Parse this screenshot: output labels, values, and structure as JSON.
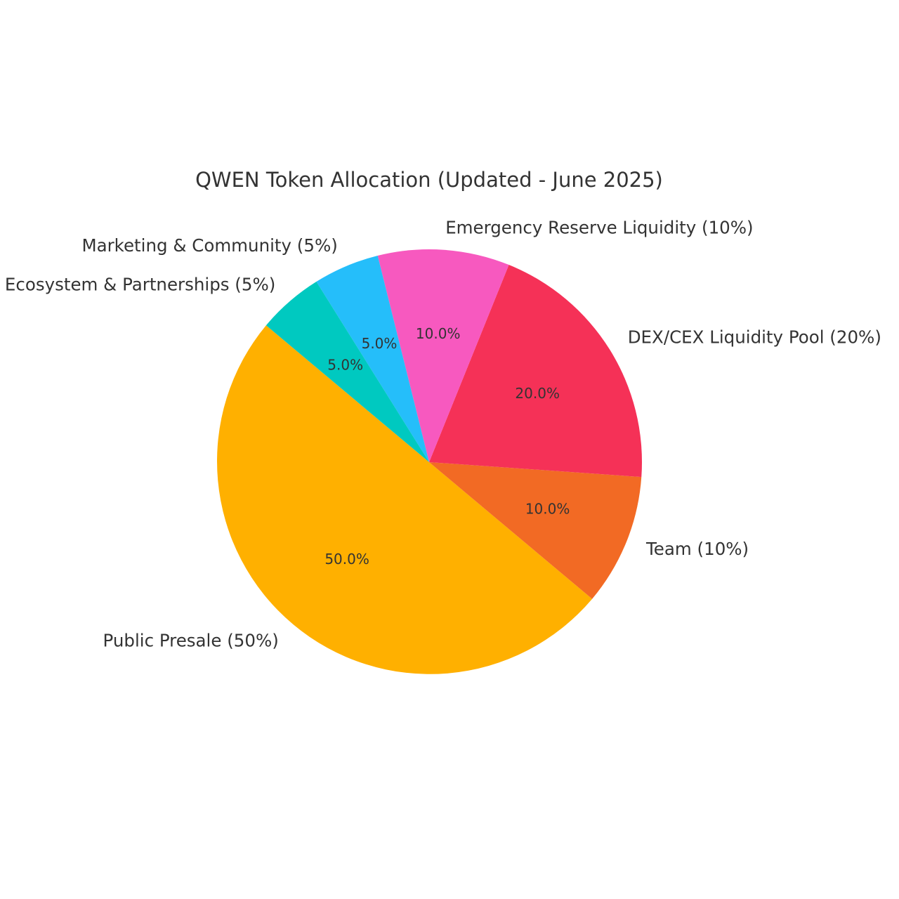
{
  "chart_data": {
    "type": "pie",
    "title": "QWEN Token Allocation (Updated - June 2025)",
    "slices": [
      {
        "label": "Public Presale (50%)",
        "value": 50,
        "pct_label": "50.0%",
        "color": "#FFB000"
      },
      {
        "label": "Team (10%)",
        "value": 10,
        "pct_label": "10.0%",
        "color": "#F26A24"
      },
      {
        "label": "DEX/CEX Liquidity Pool (20%)",
        "value": 20,
        "pct_label": "20.0%",
        "color": "#F53157"
      },
      {
        "label": "Emergency Reserve Liquidity (10%)",
        "value": 10,
        "pct_label": "10.0%",
        "color": "#F759BF"
      },
      {
        "label": "Marketing & Community (5%)",
        "value": 5,
        "pct_label": "5.0%",
        "color": "#25BEFA"
      },
      {
        "label": "Ecosystem & Partnerships (5%)",
        "value": 5,
        "pct_label": "5.0%",
        "color": "#00C9C0"
      }
    ],
    "start_angle_deg": 140,
    "direction": "counterclockwise"
  }
}
